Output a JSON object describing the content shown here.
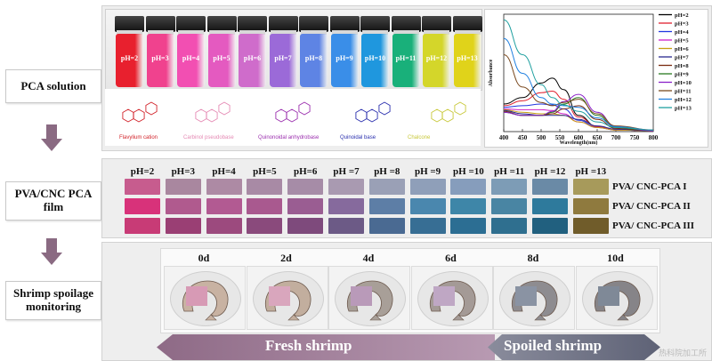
{
  "labels": {
    "pca_solution": "PCA solution",
    "film_line1": "PVA/CNC PCA",
    "film_line2": "film",
    "shrimp_line1": "Shrimp spoilage",
    "shrimp_line2": "monitoring"
  },
  "vials": [
    {
      "label": "pH=2",
      "color": "#e8202e"
    },
    {
      "label": "pH=3",
      "color": "#f0428e"
    },
    {
      "label": "pH=4",
      "color": "#f24fb2"
    },
    {
      "label": "pH=5",
      "color": "#e45ac0"
    },
    {
      "label": "pH=6",
      "color": "#cf6ccb"
    },
    {
      "label": "pH=7",
      "color": "#9b6ad8"
    },
    {
      "label": "pH=8",
      "color": "#5e84e4"
    },
    {
      "label": "pH=9",
      "color": "#3a8ee8"
    },
    {
      "label": "pH=10",
      "color": "#1f97de"
    },
    {
      "label": "pH=11",
      "color": "#19b07a"
    },
    {
      "label": "pH=12",
      "color": "#d4d62a"
    },
    {
      "label": "pH=13",
      "color": "#e0d31a"
    }
  ],
  "structures": [
    {
      "name": "Flavylium cation",
      "color": "#d2232a"
    },
    {
      "name": "Carbinol pseudobase",
      "color": "#e58ab4"
    },
    {
      "name": "Quinonoidal anhydrobase",
      "color": "#9b2fae"
    },
    {
      "name": "Quinoidal base",
      "color": "#2a2fae"
    },
    {
      "name": "Chalcone",
      "color": "#c8c83a"
    }
  ],
  "chart_data": {
    "type": "line",
    "xlabel": "Wavelength(nm)",
    "ylabel": "Absorbance",
    "xlim": [
      400,
      800
    ],
    "x_ticks": [
      "400",
      "450",
      "500",
      "550",
      "600",
      "650",
      "700",
      "750",
      "800"
    ],
    "grid": false,
    "legend": "right",
    "series": [
      {
        "name": "pH=2",
        "color": "#000000",
        "x": [
          400,
          450,
          500,
          530,
          560,
          600,
          650,
          700,
          800
        ],
        "y": [
          0.34,
          0.42,
          0.6,
          0.66,
          0.52,
          0.2,
          0.06,
          0.02,
          0.01
        ]
      },
      {
        "name": "pH=3",
        "color": "#e0202e",
        "x": [
          400,
          450,
          500,
          530,
          560,
          600,
          650,
          700,
          800
        ],
        "y": [
          0.32,
          0.38,
          0.48,
          0.5,
          0.4,
          0.18,
          0.06,
          0.02,
          0.01
        ]
      },
      {
        "name": "pH=4",
        "color": "#2036e0",
        "x": [
          400,
          450,
          500,
          530,
          560,
          600,
          650,
          700,
          800
        ],
        "y": [
          0.3,
          0.32,
          0.34,
          0.33,
          0.28,
          0.14,
          0.05,
          0.02,
          0.01
        ]
      },
      {
        "name": "pH=5",
        "color": "#d020c8",
        "x": [
          400,
          450,
          500,
          530,
          560,
          600,
          650,
          700,
          800
        ],
        "y": [
          0.28,
          0.27,
          0.27,
          0.26,
          0.22,
          0.12,
          0.05,
          0.02,
          0.01
        ]
      },
      {
        "name": "pH=6",
        "color": "#c8a010",
        "x": [
          400,
          450,
          500,
          530,
          560,
          600,
          650,
          700,
          800
        ],
        "y": [
          0.27,
          0.24,
          0.22,
          0.22,
          0.2,
          0.12,
          0.05,
          0.02,
          0.01
        ]
      },
      {
        "name": "pH=7",
        "color": "#2a2a90",
        "x": [
          400,
          450,
          500,
          530,
          560,
          600,
          650,
          700,
          800
        ],
        "y": [
          0.26,
          0.22,
          0.2,
          0.2,
          0.2,
          0.15,
          0.07,
          0.03,
          0.01
        ]
      },
      {
        "name": "pH=8",
        "color": "#7a2a10",
        "x": [
          400,
          450,
          500,
          530,
          560,
          600,
          650,
          700,
          800
        ],
        "y": [
          0.25,
          0.2,
          0.2,
          0.22,
          0.28,
          0.32,
          0.15,
          0.04,
          0.01
        ]
      },
      {
        "name": "pH=9",
        "color": "#2a7a20",
        "x": [
          400,
          450,
          500,
          530,
          560,
          600,
          650,
          700,
          800
        ],
        "y": [
          0.24,
          0.2,
          0.2,
          0.24,
          0.34,
          0.42,
          0.2,
          0.05,
          0.01
        ]
      },
      {
        "name": "pH=10",
        "color": "#8a20c8",
        "x": [
          400,
          450,
          500,
          530,
          560,
          600,
          650,
          700,
          800
        ],
        "y": [
          0.24,
          0.2,
          0.2,
          0.25,
          0.37,
          0.46,
          0.24,
          0.06,
          0.01
        ]
      },
      {
        "name": "pH=11",
        "color": "#7a4a20",
        "x": [
          400,
          450,
          500,
          530,
          560,
          600,
          650,
          700,
          800
        ],
        "y": [
          0.95,
          0.55,
          0.36,
          0.32,
          0.36,
          0.4,
          0.22,
          0.07,
          0.02
        ]
      },
      {
        "name": "pH=12",
        "color": "#2080e0",
        "x": [
          400,
          450,
          500,
          530,
          560,
          600,
          650,
          700,
          800
        ],
        "y": [
          1.15,
          0.72,
          0.42,
          0.34,
          0.32,
          0.3,
          0.17,
          0.06,
          0.02
        ]
      },
      {
        "name": "pH=13",
        "color": "#20a0a0",
        "x": [
          400,
          450,
          500,
          530,
          560,
          600,
          650,
          700,
          800
        ],
        "y": [
          1.38,
          0.95,
          0.58,
          0.42,
          0.33,
          0.25,
          0.12,
          0.05,
          0.02
        ]
      }
    ]
  },
  "film": {
    "ph_labels": [
      "pH=2",
      "pH=3",
      "pH=4",
      "pH=5",
      "pH=6",
      "pH =7",
      "pH =8",
      "pH =9",
      "pH =10",
      "pH =11",
      "pH =12",
      "pH =13"
    ],
    "rows": [
      {
        "name": "PVA/ CNC-PCA I",
        "colors": [
          "#c75c8e",
          "#a9879f",
          "#ad8aa4",
          "#a88aa5",
          "#a68ca7",
          "#a99ab1",
          "#9aa0b6",
          "#8f9fb9",
          "#869dbc",
          "#7d9cb6",
          "#6a8aa6",
          "#a79a5b"
        ]
      },
      {
        "name": "PVA/ CNC-PCA II",
        "colors": [
          "#d8327a",
          "#b05a8e",
          "#b25a92",
          "#a9598f",
          "#9a5d92",
          "#866a9d",
          "#5d7ea6",
          "#4a87ae",
          "#3e86a8",
          "#4985a3",
          "#2e7a9c",
          "#8f7a3e"
        ]
      },
      {
        "name": "PVA/ CNC-PCA III",
        "colors": [
          "#c83b76",
          "#9a3f74",
          "#9c4a7e",
          "#8a4a7c",
          "#7e4a7c",
          "#6c5a86",
          "#4a6a92",
          "#376e94",
          "#2c6e93",
          "#2f6f8f",
          "#21607f",
          "#705c2a"
        ]
      }
    ]
  },
  "shrimp": {
    "days": [
      {
        "label": "0d",
        "film_color": "#d79ab5"
      },
      {
        "label": "2d",
        "film_color": "#d9a6bd"
      },
      {
        "label": "4d",
        "film_color": "#b99ab9"
      },
      {
        "label": "6d",
        "film_color": "#bfa7c4"
      },
      {
        "label": "8d",
        "film_color": "#8a93a3"
      },
      {
        "label": "10d",
        "film_color": "#7f8997"
      }
    ],
    "fresh_label": "Fresh shrimp",
    "spoiled_label": "Spoiled shrimp"
  },
  "watermark": "热科院加工所"
}
